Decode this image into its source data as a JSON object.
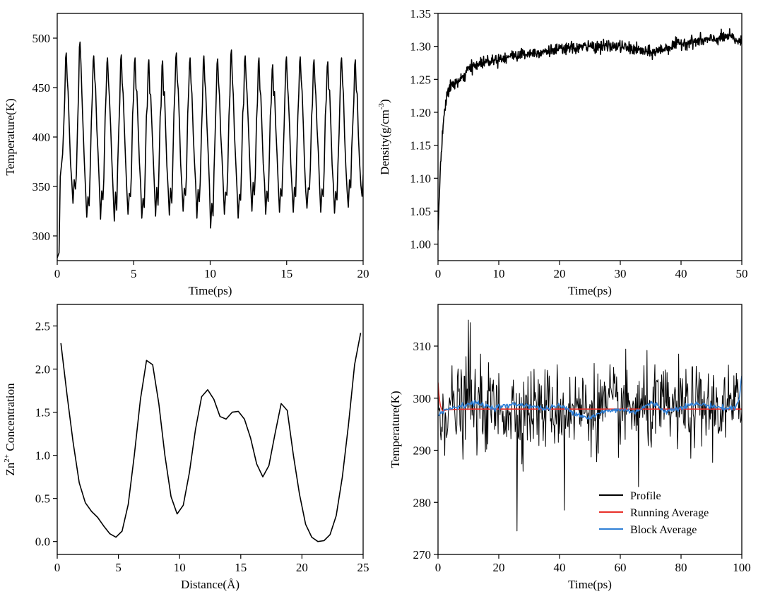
{
  "chart_data": [
    {
      "id": "temp-heating",
      "type": "line",
      "title": "",
      "xlabel": "Time(ps)",
      "ylabel": "Temperature(K)",
      "xlim": [
        0,
        20
      ],
      "ylim": [
        275,
        525
      ],
      "xticks": [
        0,
        5,
        10,
        15,
        20
      ],
      "yticks": [
        300,
        350,
        400,
        450,
        500
      ],
      "series": [
        {
          "name": "Temperature",
          "color": "#000000",
          "waveform": {
            "period_ps": 0.9,
            "mean_K": 400,
            "amplitude_K": 80,
            "start_K": 278,
            "peak_values_K": [
              485,
              496,
              482,
              480,
              483,
              480,
              478,
              477,
              485,
              480,
              482,
              479,
              488,
              482,
              480,
              473,
              481,
              481,
              478,
              476,
              480,
              478
            ],
            "trough_values_K": [
              333,
              319,
              317,
              315,
              322,
              318,
              320,
              321,
              325,
              318,
              308,
              322,
              318,
              325,
              322,
              324,
              324,
              328,
              324,
              323,
              329,
              340
            ]
          }
        }
      ]
    },
    {
      "id": "density",
      "type": "line",
      "title": "",
      "xlabel": "Time(ps)",
      "ylabel": "Density(g/cm",
      "ylabel_sup": "-3",
      "ylabel_end": ")",
      "xlim": [
        0,
        50
      ],
      "ylim": [
        0.975,
        1.35
      ],
      "xticks": [
        0,
        10,
        20,
        30,
        40,
        50
      ],
      "yticks": [
        1.0,
        1.05,
        1.1,
        1.15,
        1.2,
        1.25,
        1.3,
        1.35
      ],
      "series": [
        {
          "name": "Density",
          "color": "#000000",
          "x": [
            0,
            0.3,
            0.7,
            1,
            1.5,
            2,
            3,
            4,
            5,
            7,
            9,
            12,
            15,
            20,
            25,
            30,
            35,
            40,
            45,
            48,
            50
          ],
          "y": [
            1.02,
            1.1,
            1.16,
            1.2,
            1.225,
            1.24,
            1.245,
            1.25,
            1.265,
            1.275,
            1.28,
            1.285,
            1.29,
            1.295,
            1.3,
            1.3,
            1.29,
            1.305,
            1.31,
            1.315,
            1.305
          ]
        }
      ]
    },
    {
      "id": "zn-concentration",
      "type": "line",
      "title": "",
      "xlabel": "Distance(Å)",
      "ylabel_prefix": "Zn",
      "ylabel_sup": "2+",
      "ylabel_end": " Concentration",
      "xlim": [
        0,
        25
      ],
      "ylim": [
        -0.15,
        2.75
      ],
      "xticks": [
        0,
        5,
        10,
        15,
        20,
        25
      ],
      "yticks": [
        0.0,
        0.5,
        1.0,
        1.5,
        2.0,
        2.5
      ],
      "series": [
        {
          "name": "Zn2+",
          "color": "#000000",
          "x": [
            0.3,
            0.8,
            1.3,
            1.8,
            2.3,
            2.8,
            3.3,
            3.8,
            4.3,
            4.8,
            5.3,
            5.8,
            6.3,
            6.8,
            7.3,
            7.8,
            8.3,
            8.8,
            9.3,
            9.8,
            10.3,
            10.8,
            11.3,
            11.8,
            12.3,
            12.8,
            13.3,
            13.8,
            14.3,
            14.8,
            15.3,
            15.8,
            16.3,
            16.8,
            17.3,
            17.8,
            18.3,
            18.8,
            19.3,
            19.8,
            20.3,
            20.8,
            21.3,
            21.8,
            22.3,
            22.8,
            23.3,
            23.8,
            24.3,
            24.8
          ],
          "y": [
            2.3,
            1.7,
            1.15,
            0.68,
            0.45,
            0.35,
            0.28,
            0.18,
            0.09,
            0.05,
            0.12,
            0.43,
            1.0,
            1.65,
            2.1,
            2.05,
            1.6,
            1.0,
            0.52,
            0.32,
            0.42,
            0.8,
            1.3,
            1.68,
            1.76,
            1.65,
            1.45,
            1.42,
            1.5,
            1.51,
            1.42,
            1.2,
            0.9,
            0.75,
            0.88,
            1.25,
            1.6,
            1.52,
            1.0,
            0.55,
            0.2,
            0.05,
            0.0,
            0.01,
            0.08,
            0.3,
            0.75,
            1.35,
            2.05,
            2.42
          ]
        }
      ]
    },
    {
      "id": "temp-equilibration",
      "type": "line",
      "title": "",
      "xlabel": "Time(ps)",
      "ylabel": "Temperature(K)",
      "xlim": [
        0,
        100
      ],
      "ylim": [
        270,
        318
      ],
      "xticks": [
        0,
        20,
        40,
        60,
        80,
        100
      ],
      "yticks": [
        270,
        280,
        290,
        300,
        310
      ],
      "legend_position": "bottom-right",
      "series": [
        {
          "name": "Profile",
          "color": "#000000",
          "mean_K": 298,
          "std_K": 4,
          "notable_dips": [
            {
              "x": 26,
              "y": 274.5
            },
            {
              "x": 41.5,
              "y": 278.5
            },
            {
              "x": 66,
              "y": 283
            }
          ],
          "notable_peaks": [
            {
              "x": 10,
              "y": 315
            },
            {
              "x": 10.5,
              "y": 314.5
            }
          ]
        },
        {
          "name": "Running Average",
          "color": "#e8302a",
          "x": [
            0,
            0.3,
            0.8,
            1.5,
            3,
            10,
            50,
            100
          ],
          "y": [
            303,
            300.5,
            298.5,
            297.5,
            297.8,
            297.9,
            297.9,
            297.9
          ]
        },
        {
          "name": "Block Average",
          "color": "#2f7fd6",
          "x": [
            0,
            2,
            5,
            8,
            10,
            12,
            15,
            18,
            22,
            26,
            30,
            35,
            40,
            45,
            48,
            50,
            55,
            60,
            65,
            70,
            72,
            75,
            80,
            85,
            90,
            95,
            98,
            99,
            100
          ],
          "y": [
            297,
            297.6,
            298.2,
            298.6,
            298.9,
            299.1,
            298.7,
            298.2,
            298.5,
            298.8,
            298.6,
            297.9,
            298.6,
            297.2,
            296.5,
            296.2,
            297.5,
            297.8,
            297.4,
            299.0,
            298.7,
            297.4,
            298.3,
            298.9,
            298.5,
            298.0,
            298.2,
            299.5,
            304.5
          ]
        }
      ]
    }
  ]
}
